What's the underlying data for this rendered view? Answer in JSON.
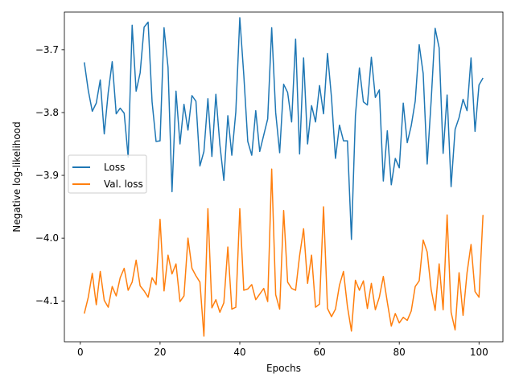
{
  "chart_data": {
    "type": "line",
    "title": "",
    "xlabel": "Epochs",
    "ylabel": "Negative log-likelihood",
    "xlim": [
      -4,
      106
    ],
    "ylim": [
      -4.165,
      -3.64
    ],
    "xticks": [
      0,
      20,
      40,
      60,
      80,
      100
    ],
    "yticks": [
      -4.1,
      -4.0,
      -3.9,
      -3.8,
      -3.7
    ],
    "xtick_labels": [
      "0",
      "20",
      "40",
      "60",
      "80",
      "100"
    ],
    "ytick_labels": [
      "−4.1",
      "−4.0",
      "−3.9",
      "−3.8",
      "−3.7"
    ],
    "grid": false,
    "legend": "center-left",
    "x": [
      1,
      2,
      3,
      4,
      5,
      6,
      7,
      8,
      9,
      10,
      11,
      12,
      13,
      14,
      15,
      16,
      17,
      18,
      19,
      20,
      21,
      22,
      23,
      24,
      25,
      26,
      27,
      28,
      29,
      30,
      31,
      32,
      33,
      34,
      35,
      36,
      37,
      38,
      39,
      40,
      41,
      42,
      43,
      44,
      45,
      46,
      47,
      48,
      49,
      50,
      51,
      52,
      53,
      54,
      55,
      56,
      57,
      58,
      59,
      60,
      61,
      62,
      63,
      64,
      65,
      66,
      67,
      68,
      69,
      70,
      71,
      72,
      73,
      74,
      75,
      76,
      77,
      78,
      79,
      80,
      81,
      82,
      83,
      84,
      85,
      86,
      87,
      88,
      89,
      90,
      91,
      92,
      93,
      94,
      95,
      96,
      97,
      98,
      99,
      100,
      101
    ],
    "series": [
      {
        "name": "Loss",
        "color": "#1f77b4",
        "values": [
          -3.72,
          -3.765,
          -3.798,
          -3.785,
          -3.748,
          -3.834,
          -3.768,
          -3.719,
          -3.802,
          -3.793,
          -3.801,
          -3.871,
          -3.661,
          -3.766,
          -3.737,
          -3.664,
          -3.656,
          -3.783,
          -3.846,
          -3.845,
          -3.665,
          -3.728,
          -3.926,
          -3.766,
          -3.85,
          -3.787,
          -3.828,
          -3.773,
          -3.782,
          -3.885,
          -3.862,
          -3.778,
          -3.87,
          -3.771,
          -3.851,
          -3.908,
          -3.805,
          -3.868,
          -3.799,
          -3.649,
          -3.74,
          -3.846,
          -3.868,
          -3.797,
          -3.862,
          -3.836,
          -3.81,
          -3.665,
          -3.8,
          -3.864,
          -3.755,
          -3.768,
          -3.815,
          -3.683,
          -3.866,
          -3.713,
          -3.85,
          -3.789,
          -3.815,
          -3.757,
          -3.802,
          -3.706,
          -3.776,
          -3.873,
          -3.82,
          -3.845,
          -3.845,
          -4.002,
          -3.805,
          -3.729,
          -3.783,
          -3.788,
          -3.712,
          -3.776,
          -3.764,
          -3.909,
          -3.829,
          -3.915,
          -3.873,
          -3.888,
          -3.785,
          -3.848,
          -3.821,
          -3.782,
          -3.692,
          -3.738,
          -3.882,
          -3.781,
          -3.666,
          -3.697,
          -3.865,
          -3.772,
          -3.918,
          -3.827,
          -3.808,
          -3.779,
          -3.797,
          -3.713,
          -3.83,
          -3.756,
          -3.745
        ]
      },
      {
        "name": "Val. loss",
        "color": "#ff7f0e",
        "values": [
          -4.12,
          -4.094,
          -4.056,
          -4.106,
          -4.053,
          -4.099,
          -4.11,
          -4.077,
          -4.092,
          -4.063,
          -4.048,
          -4.083,
          -4.07,
          -4.035,
          -4.076,
          -4.084,
          -4.094,
          -4.063,
          -4.074,
          -3.97,
          -4.084,
          -4.027,
          -4.057,
          -4.041,
          -4.101,
          -4.092,
          -4.0,
          -4.048,
          -4.06,
          -4.07,
          -4.156,
          -3.953,
          -4.111,
          -4.098,
          -4.118,
          -4.103,
          -4.014,
          -4.113,
          -4.11,
          -3.953,
          -4.083,
          -4.081,
          -4.074,
          -4.098,
          -4.089,
          -4.08,
          -4.101,
          -3.89,
          -4.09,
          -4.113,
          -3.956,
          -4.07,
          -4.08,
          -4.083,
          -4.028,
          -3.985,
          -4.072,
          -4.027,
          -4.11,
          -4.105,
          -3.95,
          -4.112,
          -4.125,
          -4.113,
          -4.075,
          -4.053,
          -4.109,
          -4.148,
          -4.067,
          -4.083,
          -4.068,
          -4.112,
          -4.072,
          -4.114,
          -4.094,
          -4.061,
          -4.102,
          -4.14,
          -4.12,
          -4.135,
          -4.126,
          -4.131,
          -4.116,
          -4.077,
          -4.068,
          -4.003,
          -4.022,
          -4.082,
          -4.115,
          -4.041,
          -4.114,
          -3.963,
          -4.118,
          -4.146,
          -4.055,
          -4.123,
          -4.055,
          -4.01,
          -4.085,
          -4.094,
          -3.963
        ]
      }
    ]
  }
}
